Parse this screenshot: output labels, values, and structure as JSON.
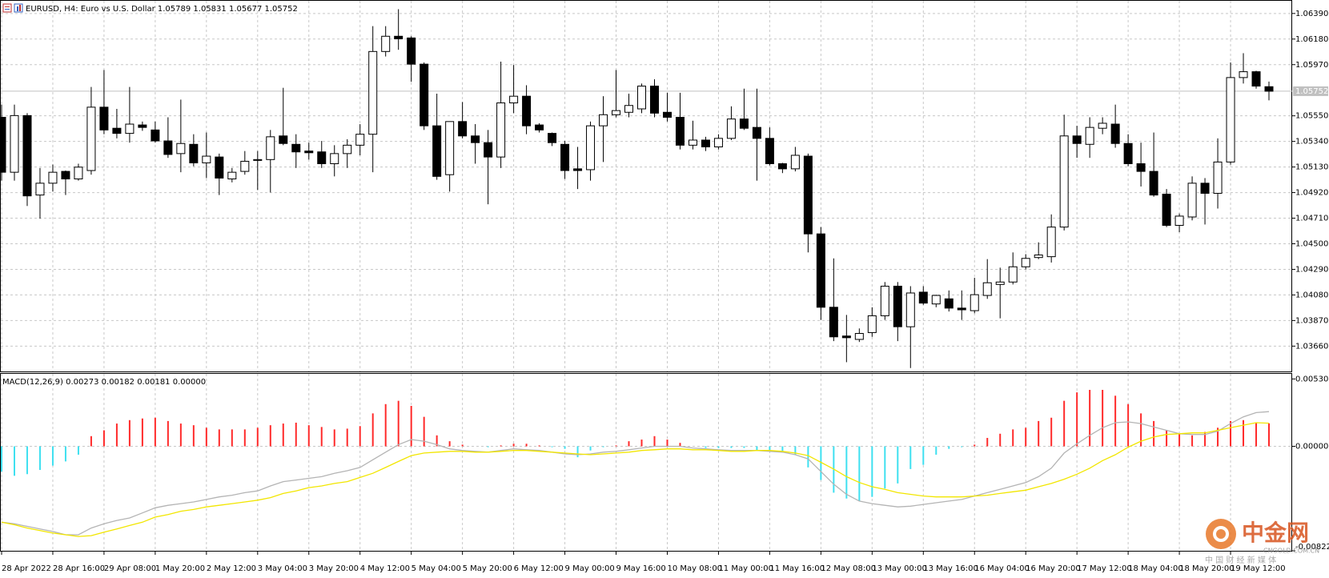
{
  "chart_data": [
    {
      "type": "candlestick",
      "title": "EURUSD, H4:  Euro vs U.S. Dollar  1.05789 1.05831 1.05677 1.05752",
      "categories": [
        "28 Apr 2022",
        null,
        null,
        null,
        "28 Apr 16:00",
        null,
        null,
        null,
        "29 Apr 08:00",
        null,
        null,
        null,
        "1 May 20:00",
        null,
        null,
        null,
        "2 May 12:00",
        null,
        null,
        null,
        "3 May 04:00",
        null,
        null,
        null,
        "3 May 20:00",
        null,
        null,
        null,
        "4 May 12:00",
        null,
        null,
        null,
        "5 May 04:00",
        null,
        null,
        null,
        "5 May 20:00",
        null,
        null,
        null,
        "6 May 12:00",
        null,
        null,
        null,
        "9 May 00:00",
        null,
        null,
        null,
        "9 May 16:00",
        null,
        null,
        null,
        "10 May 08:00",
        null,
        null,
        null,
        "11 May 00:00",
        null,
        null,
        null,
        "11 May 16:00",
        null,
        null,
        null,
        "12 May 08:00",
        null,
        null,
        null,
        "13 May 00:00",
        null,
        null,
        null,
        "13 May 16:00",
        null,
        null,
        null,
        "16 May 04:00",
        null,
        null,
        null,
        "16 May 20:00",
        null,
        null,
        null,
        "17 May 12:00",
        null,
        null,
        null,
        "18 May 04:00",
        null,
        null,
        null,
        "18 May 20:00",
        null,
        null,
        null,
        "19 May 12:00",
        null,
        null,
        null
      ],
      "candles": [
        [
          1.05538,
          1.05642,
          1.05018,
          1.05087
        ],
        [
          1.05087,
          1.05642,
          1.05018,
          1.05552
        ],
        [
          1.05552,
          1.05572,
          1.0481,
          1.04893
        ],
        [
          1.049,
          1.05122,
          1.04706,
          1.04997
        ],
        [
          1.04997,
          1.0515,
          1.04928,
          1.05087
        ],
        [
          1.05094,
          1.05101,
          1.049,
          1.05032
        ],
        [
          1.05032,
          1.05157,
          1.05018,
          1.05129
        ],
        [
          1.05101,
          1.05787,
          1.05067,
          1.05621
        ],
        [
          1.05621,
          1.05926,
          1.05399,
          1.05434
        ],
        [
          1.05448,
          1.05607,
          1.05365,
          1.05406
        ],
        [
          1.05406,
          1.05787,
          1.0533,
          1.05482
        ],
        [
          1.05475,
          1.05503,
          1.05427,
          1.05455
        ],
        [
          1.05434,
          1.05503,
          1.0533,
          1.05344
        ],
        [
          1.05344,
          1.05538,
          1.05205,
          1.05233
        ],
        [
          1.0524,
          1.05683,
          1.05087,
          1.05323
        ],
        [
          1.05316,
          1.05399,
          1.05136,
          1.05164
        ],
        [
          1.05164,
          1.05413,
          1.05039,
          1.05219
        ],
        [
          1.05212,
          1.0524,
          1.049,
          1.05039
        ],
        [
          1.05032,
          1.05122,
          1.05004,
          1.05087
        ],
        [
          1.05094,
          1.05261,
          1.05067,
          1.05177
        ],
        [
          1.05184,
          1.05261,
          1.04942,
          1.05191
        ],
        [
          1.05191,
          1.05434,
          1.04921,
          1.05378
        ],
        [
          1.05385,
          1.0578,
          1.05309,
          1.05323
        ],
        [
          1.05316,
          1.05399,
          1.05122,
          1.05254
        ],
        [
          1.05261,
          1.0533,
          1.05191,
          1.05247
        ],
        [
          1.05254,
          1.05344,
          1.05122,
          1.05157
        ],
        [
          1.05157,
          1.05309,
          1.05053,
          1.0524
        ],
        [
          1.0524,
          1.05358,
          1.05122,
          1.05309
        ],
        [
          1.05309,
          1.05482,
          1.05226,
          1.05399
        ],
        [
          1.05399,
          1.06286,
          1.05087,
          1.06078
        ],
        [
          1.06078,
          1.06286,
          1.06037,
          1.06203
        ],
        [
          1.06203,
          1.06425,
          1.06092,
          1.06182
        ],
        [
          1.06189,
          1.06203,
          1.05829,
          1.05974
        ],
        [
          1.05974,
          1.05988,
          1.05434,
          1.05468
        ],
        [
          1.05468,
          1.05732,
          1.05025,
          1.05053
        ],
        [
          1.05067,
          1.05503,
          1.04928,
          1.05503
        ],
        [
          1.05503,
          1.05663,
          1.05365,
          1.05385
        ],
        [
          1.05385,
          1.05482,
          1.05157,
          1.0533
        ],
        [
          1.0533,
          1.05434,
          1.04824,
          1.05212
        ],
        [
          1.05212,
          1.05995,
          1.05122,
          1.05656
        ],
        [
          1.05656,
          1.05967,
          1.05572,
          1.05711
        ],
        [
          1.05711,
          1.05801,
          1.05399,
          1.05468
        ],
        [
          1.05475,
          1.05489,
          1.05413,
          1.05434
        ],
        [
          1.05406,
          1.05413,
          1.05302,
          1.0533
        ],
        [
          1.05316,
          1.05344,
          1.05032,
          1.05101
        ],
        [
          1.05115,
          1.05295,
          1.04949,
          1.05101
        ],
        [
          1.05108,
          1.05503,
          1.05018,
          1.05468
        ],
        [
          1.05468,
          1.05711,
          1.05171,
          1.05559
        ],
        [
          1.05559,
          1.05926,
          1.05538,
          1.05593
        ],
        [
          1.05579,
          1.05732,
          1.05538,
          1.05635
        ],
        [
          1.05607,
          1.05815,
          1.05572,
          1.05794
        ],
        [
          1.05794,
          1.0585,
          1.05538,
          1.05572
        ],
        [
          1.05579,
          1.05739,
          1.05503,
          1.05538
        ],
        [
          1.05538,
          1.05739,
          1.05274,
          1.05309
        ],
        [
          1.05309,
          1.0551,
          1.05274,
          1.05351
        ],
        [
          1.05351,
          1.05378,
          1.05261,
          1.05295
        ],
        [
          1.05295,
          1.05399,
          1.05274,
          1.05365
        ],
        [
          1.05365,
          1.05628,
          1.05351,
          1.05524
        ],
        [
          1.05524,
          1.05773,
          1.05434,
          1.05448
        ],
        [
          1.05455,
          1.05773,
          1.05018,
          1.05365
        ],
        [
          1.05365,
          1.05455,
          1.05143,
          1.05157
        ],
        [
          1.05157,
          1.05164,
          1.0508,
          1.05115
        ],
        [
          1.05115,
          1.05295,
          1.05094,
          1.05226
        ],
        [
          1.05219,
          1.0524,
          1.04429,
          1.04581
        ],
        [
          1.04581,
          1.04637,
          1.03875,
          1.03979
        ],
        [
          1.03979,
          1.0438,
          1.03701,
          1.03736
        ],
        [
          1.03743,
          1.03916,
          1.03528,
          1.03729
        ],
        [
          1.03715,
          1.03805,
          1.03694,
          1.03764
        ],
        [
          1.03771,
          1.03979,
          1.03736,
          1.03909
        ],
        [
          1.03909,
          1.04186,
          1.03875,
          1.04152
        ],
        [
          1.04152,
          1.04186,
          1.03701,
          1.03819
        ],
        [
          1.03819,
          1.04152,
          1.0348,
          1.04096
        ],
        [
          1.04103,
          1.04152,
          1.03999,
          1.04013
        ],
        [
          1.04006,
          1.04082,
          1.03979,
          1.04076
        ],
        [
          1.04048,
          1.04117,
          1.03944,
          1.03972
        ],
        [
          1.03972,
          1.04117,
          1.03875,
          1.03958
        ],
        [
          1.03951,
          1.04221,
          1.0393,
          1.04082
        ],
        [
          1.04076,
          1.04374,
          1.04048,
          1.0418
        ],
        [
          1.04166,
          1.04304,
          1.03888,
          1.04186
        ],
        [
          1.04186,
          1.04429,
          1.04166,
          1.04311
        ],
        [
          1.04311,
          1.04415,
          1.0429,
          1.0438
        ],
        [
          1.04387,
          1.04512,
          1.04374,
          1.04408
        ],
        [
          1.04394,
          1.04741,
          1.04346,
          1.04637
        ],
        [
          1.04637,
          1.05559,
          1.04609,
          1.05385
        ],
        [
          1.05385,
          1.05468,
          1.05205,
          1.05323
        ],
        [
          1.05316,
          1.05538,
          1.05205,
          1.05455
        ],
        [
          1.05448,
          1.05538,
          1.05399,
          1.05489
        ],
        [
          1.05482,
          1.05642,
          1.05288,
          1.05323
        ],
        [
          1.05323,
          1.05399,
          1.05136,
          1.05157
        ],
        [
          1.05157,
          1.0533,
          1.0497,
          1.05094
        ],
        [
          1.05094,
          1.05413,
          1.04886,
          1.049
        ],
        [
          1.04907,
          1.04949,
          1.04637,
          1.04651
        ],
        [
          1.04651,
          1.04748,
          1.04595,
          1.04727
        ],
        [
          1.0472,
          1.05053,
          1.04692,
          1.04997
        ],
        [
          1.04997,
          1.05039,
          1.04658,
          1.04914
        ],
        [
          1.04914,
          1.05365,
          1.04789,
          1.05171
        ],
        [
          1.05171,
          1.05988,
          1.0515,
          1.05864
        ],
        [
          1.05864,
          1.06064,
          1.05815,
          1.05912
        ],
        [
          1.05912,
          1.0592,
          1.05773,
          1.05794
        ],
        [
          1.05789,
          1.05831,
          1.05677,
          1.05752
        ]
      ],
      "up_color": "#ffffff",
      "down_color": "#000000",
      "ylim": [
        1.03452,
        1.06494
      ],
      "yticks": [
        {
          "value": 1.0639,
          "label": "1.06390"
        },
        {
          "value": 1.0618,
          "label": "1.06180"
        },
        {
          "value": 1.0597,
          "label": "1.05970"
        },
        {
          "value": 1.0555,
          "label": "1.05550"
        },
        {
          "value": 1.0534,
          "label": "1.05340"
        },
        {
          "value": 1.0513,
          "label": "1.05130"
        },
        {
          "value": 1.0492,
          "label": "1.04920"
        },
        {
          "value": 1.0471,
          "label": "1.04710"
        },
        {
          "value": 1.045,
          "label": "1.04500"
        },
        {
          "value": 1.0429,
          "label": "1.04290"
        },
        {
          "value": 1.0408,
          "label": "1.04080"
        },
        {
          "value": 1.0387,
          "label": "1.03870"
        },
        {
          "value": 1.0366,
          "label": "1.03660"
        }
      ],
      "grid": true
    },
    {
      "type": "macd",
      "title": "MACD(12,26,9) 0.00273 0.00182 0.00181 0.00000",
      "series": [
        {
          "type": "histogram",
          "color": "#ff2a2a",
          "negative_color": "#3fe0f0",
          "values": [
            -0.00199,
            -0.00232,
            -0.00219,
            -0.00186,
            -0.00152,
            -0.00119,
            -0.00066,
            0.0008,
            0.00126,
            0.00179,
            0.00206,
            0.00219,
            0.00225,
            0.00199,
            0.00179,
            0.00166,
            0.00146,
            0.00133,
            0.00133,
            0.00133,
            0.00146,
            0.00166,
            0.00179,
            0.00186,
            0.00166,
            0.00152,
            0.00133,
            0.00139,
            0.00159,
            0.00259,
            0.00332,
            0.00358,
            0.00318,
            0.00232,
            0.00086,
            0.0004,
            0.00013,
            0,
            -7e-05,
            7e-05,
            0.0002,
            0.0002,
            7e-05,
            -7e-05,
            -0.0002,
            -0.00086,
            -0.00033,
            -7e-05,
            7e-05,
            0.0004,
            0.00053,
            0.0008,
            0.00053,
            0.00027,
            0,
            -0.00013,
            -0.00013,
            -0.00013,
            -0.00013,
            -0.00033,
            -0.0004,
            -0.00046,
            -0.00066,
            -0.00166,
            -0.00265,
            -0.00365,
            -0.00411,
            -0.00431,
            -0.00398,
            -0.00332,
            -0.00292,
            -0.00179,
            -0.00146,
            -0.00066,
            -0.0002,
            -7e-05,
            0.00013,
            0.00066,
            0.00099,
            0.00133,
            0.00146,
            0.00199,
            0.00225,
            0.00358,
            0.00424,
            0.00444,
            0.00444,
            0.00398,
            0.00332,
            0.00259,
            0.00199,
            0.00126,
            0.00099,
            0.00086,
            0.00113,
            0.00146,
            0.00199,
            0.00206,
            0.00186,
            0.00181
          ]
        },
        {
          "type": "line",
          "color": "#b4b4b4",
          "values": [
            -0.00597,
            -0.0061,
            -0.0063,
            -0.0065,
            -0.0067,
            -0.00696,
            -0.00696,
            -0.00643,
            -0.0061,
            -0.00583,
            -0.00564,
            -0.00524,
            -0.00484,
            -0.00464,
            -0.00451,
            -0.00438,
            -0.00418,
            -0.00398,
            -0.00385,
            -0.00365,
            -0.00351,
            -0.00312,
            -0.00278,
            -0.00265,
            -0.00252,
            -0.00239,
            -0.00212,
            -0.00192,
            -0.00166,
            -0.00106,
            -0.00046,
            0.00013,
            0.00053,
            0.0004,
            0.00013,
            -0.0002,
            -0.00033,
            -0.0004,
            -0.00046,
            -0.00033,
            -0.0002,
            -0.00027,
            -0.00033,
            -0.00046,
            -0.0006,
            -0.00066,
            -0.0006,
            -0.00046,
            -0.0004,
            -0.00027,
            -0.00013,
            0,
            0,
            0,
            -0.00013,
            -0.0002,
            -0.00027,
            -0.00033,
            -0.00033,
            -0.00033,
            -0.0004,
            -0.00046,
            -0.00066,
            -0.00099,
            -0.00199,
            -0.00298,
            -0.00378,
            -0.00431,
            -0.00451,
            -0.00464,
            -0.00477,
            -0.00471,
            -0.00457,
            -0.00444,
            -0.00431,
            -0.00418,
            -0.00391,
            -0.00365,
            -0.00338,
            -0.00312,
            -0.00285,
            -0.00239,
            -0.00172,
            -0.00053,
            0.0002,
            0.00086,
            0.00146,
            0.00186,
            0.00192,
            0.00179,
            0.00152,
            0.00126,
            0.00099,
            0.00093,
            0.00093,
            0.00119,
            0.00179,
            0.00232,
            0.00265,
            0.00273
          ]
        },
        {
          "type": "line",
          "color": "#f2e600",
          "values": [
            -0.00597,
            -0.00617,
            -0.00643,
            -0.00663,
            -0.00683,
            -0.00696,
            -0.00709,
            -0.00703,
            -0.00676,
            -0.0065,
            -0.00623,
            -0.00597,
            -0.00557,
            -0.00537,
            -0.00511,
            -0.00497,
            -0.00477,
            -0.00464,
            -0.00451,
            -0.00438,
            -0.00424,
            -0.00404,
            -0.00371,
            -0.00351,
            -0.00325,
            -0.00312,
            -0.00292,
            -0.00278,
            -0.00245,
            -0.00212,
            -0.00166,
            -0.00119,
            -0.00073,
            -0.00053,
            -0.00046,
            -0.0004,
            -0.0004,
            -0.00046,
            -0.00046,
            -0.0004,
            -0.00033,
            -0.00033,
            -0.0004,
            -0.00046,
            -0.00053,
            -0.0006,
            -0.00066,
            -0.0006,
            -0.00053,
            -0.00046,
            -0.00033,
            -0.00027,
            -0.0002,
            -0.0002,
            -0.00027,
            -0.00027,
            -0.00033,
            -0.0004,
            -0.0004,
            -0.00033,
            -0.00033,
            -0.0004,
            -0.00053,
            -0.00073,
            -0.00126,
            -0.00179,
            -0.00239,
            -0.00285,
            -0.00318,
            -0.00338,
            -0.00365,
            -0.00378,
            -0.00391,
            -0.00398,
            -0.00398,
            -0.00398,
            -0.00391,
            -0.00385,
            -0.00371,
            -0.00358,
            -0.00345,
            -0.00318,
            -0.00292,
            -0.00259,
            -0.00219,
            -0.00172,
            -0.00113,
            -0.00066,
            -7e-05,
            0.0004,
            0.00073,
            0.00093,
            0.00099,
            0.00106,
            0.00106,
            0.00126,
            0.00146,
            0.00166,
            0.00186,
            0.00182
          ]
        }
      ],
      "ylim": [
        -0.00822,
        0.0057
      ],
      "yticks": [
        {
          "value": 0.0053,
          "label": "0.00530"
        },
        {
          "value": 0,
          "label": "0.00000"
        },
        {
          "value": -0.00822,
          "label": "-0.00822"
        }
      ]
    }
  ],
  "watermark": {
    "name": "中金网",
    "url": "CNGOLD.COM.CN",
    "tagline": "中 国 财 经 新 媒 体"
  }
}
